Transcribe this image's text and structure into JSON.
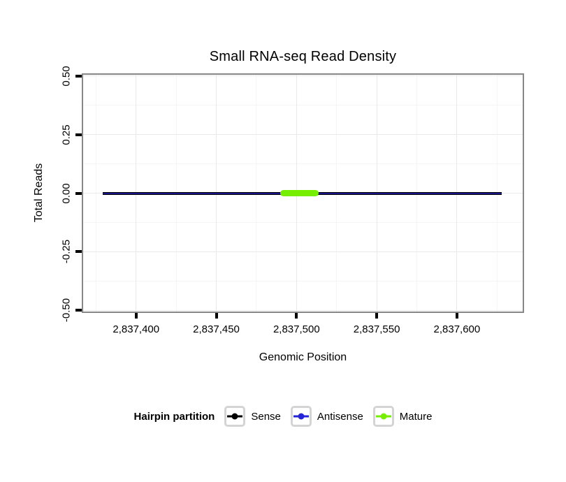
{
  "chart_data": {
    "type": "line",
    "title": "Small RNA-seq Read Density",
    "xlabel": "Genomic Position",
    "ylabel": "Total Reads",
    "xlim": [
      2837367,
      2837641
    ],
    "ylim": [
      -0.505,
      0.505
    ],
    "grid": {
      "major": true,
      "minor": true,
      "color_major": "#e9e9e9",
      "color_minor": "#f5f5f5"
    },
    "x_ticks": [
      {
        "value": 2837400,
        "label": "2,837,400"
      },
      {
        "value": 2837450,
        "label": "2,837,450"
      },
      {
        "value": 2837500,
        "label": "2,837,500"
      },
      {
        "value": 2837550,
        "label": "2,837,550"
      },
      {
        "value": 2837600,
        "label": "2,837,600"
      }
    ],
    "y_ticks": [
      {
        "value": 0.5,
        "label": "0.50"
      },
      {
        "value": 0.25,
        "label": "0.25"
      },
      {
        "value": 0,
        "label": "0.00"
      },
      {
        "value": -0.25,
        "label": "-0.25"
      },
      {
        "value": -0.5,
        "label": "-0.50"
      }
    ],
    "series": [
      {
        "name": "Sense",
        "color": "#000000",
        "line_width": 4,
        "rounded": false,
        "overlay_opacity": 1,
        "points": [
          [
            2837379,
            0
          ],
          [
            2837628,
            0
          ]
        ]
      },
      {
        "name": "Antisense",
        "color": "#2424D8",
        "line_width": 2,
        "rounded": false,
        "overlay_opacity": 0.62,
        "points": [
          [
            2837379,
            0
          ],
          [
            2837628,
            0
          ]
        ]
      },
      {
        "name": "Mature",
        "color": "#76EE00",
        "line_width": 9,
        "rounded": true,
        "overlay_opacity": 1,
        "points": [
          [
            2837490,
            0
          ],
          [
            2837514,
            0
          ]
        ]
      }
    ],
    "legend": {
      "title": "Hairpin partition",
      "position": "bottom",
      "entries": [
        {
          "label": "Sense",
          "color": "#000000"
        },
        {
          "label": "Antisense",
          "color": "#2424D8"
        },
        {
          "label": "Mature",
          "color": "#76EE00"
        }
      ]
    }
  },
  "colors": {
    "panel_border": "#878787",
    "tick": "#000000",
    "text": "#000000",
    "legend_key_border": "#d4d4d4"
  }
}
